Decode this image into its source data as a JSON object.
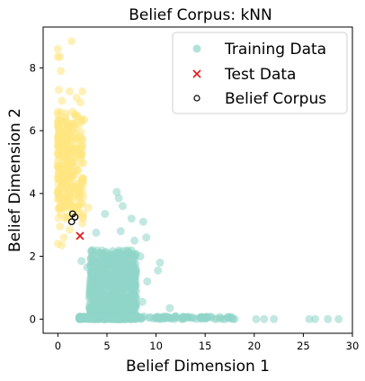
{
  "chart_data": {
    "type": "scatter",
    "title": "Belief Corpus: kNN",
    "xlabel": "Belief Dimension 1",
    "ylabel": "Belief Dimension 2",
    "xlim": [
      -1.5,
      30.0
    ],
    "ylim": [
      -0.45,
      9.3
    ],
    "xticks": [
      0,
      5,
      10,
      15,
      20,
      25,
      30
    ],
    "yticks": [
      0,
      2,
      4,
      6,
      8
    ],
    "grid": false,
    "legend_position": "top-right",
    "colors": {
      "training": "#8fd6c8",
      "test": "#e31a1c",
      "corpus": "#000000",
      "yellow": "#ffe680"
    },
    "series": [
      {
        "name": "Training Data",
        "marker": "circle",
        "clusters": [
          {
            "color": "#ffe680",
            "description": "x≈0–3, y≈2.3–9",
            "points": [
              [
                0.0,
                8.6
              ],
              [
                0.2,
                8.35
              ],
              [
                0.0,
                8.35
              ],
              [
                1.4,
                8.85
              ],
              [
                0.3,
                7.9
              ],
              [
                0.1,
                7.3
              ],
              [
                1.2,
                7.25
              ],
              [
                2.5,
                7.25
              ],
              [
                1.9,
                7.05
              ],
              [
                0.4,
                6.95
              ],
              [
                2.3,
                6.9
              ],
              [
                0.0,
                6.6
              ],
              [
                0.8,
                6.55
              ],
              [
                1.5,
                6.6
              ],
              [
                0.4,
                6.3
              ],
              [
                2.7,
                6.35
              ],
              [
                1.0,
                6.1
              ],
              [
                0.3,
                6.0
              ],
              [
                1.8,
                5.9
              ],
              [
                0.0,
                5.8
              ],
              [
                2.1,
                5.7
              ],
              [
                0.6,
                5.55
              ],
              [
                1.3,
                5.5
              ],
              [
                0.0,
                5.3
              ],
              [
                2.3,
                5.35
              ],
              [
                0.9,
                5.1
              ],
              [
                1.6,
                5.0
              ],
              [
                0.2,
                4.8
              ],
              [
                2.0,
                4.75
              ],
              [
                1.1,
                4.55
              ],
              [
                0.5,
                4.35
              ],
              [
                1.7,
                4.2
              ],
              [
                0.0,
                4.05
              ],
              [
                2.2,
                3.95
              ],
              [
                1.0,
                3.8
              ],
              [
                0.3,
                3.55
              ],
              [
                1.5,
                3.4
              ],
              [
                0.8,
                3.2
              ],
              [
                0.2,
                2.95
              ],
              [
                1.2,
                2.85
              ],
              [
                0.6,
                2.6
              ],
              [
                0.0,
                2.4
              ],
              [
                0.4,
                2.35
              ],
              [
                3.1,
                3.55
              ],
              [
                2.6,
                4.3
              ]
            ]
          },
          {
            "color": "#8fd6c8",
            "description": "x≈1–29, y≈0–4",
            "points": [
              [
                6.0,
                4.05
              ],
              [
                6.2,
                3.85
              ],
              [
                4.8,
                3.35
              ],
              [
                6.6,
                3.6
              ],
              [
                8.7,
                3.1
              ],
              [
                9.0,
                2.6
              ],
              [
                7.5,
                3.2
              ],
              [
                3.9,
                2.75
              ],
              [
                3.5,
                2.2
              ],
              [
                6.4,
                2.8
              ],
              [
                2.4,
                1.85
              ],
              [
                3.0,
                1.65
              ],
              [
                3.3,
                1.25
              ],
              [
                7.8,
                2.5
              ],
              [
                8.4,
                2.0
              ],
              [
                10.4,
                1.8
              ],
              [
                10.2,
                1.55
              ],
              [
                9.1,
                1.2
              ],
              [
                8.6,
                0.55
              ],
              [
                11.4,
                0.35
              ],
              [
                12.0,
                0.1
              ],
              [
                13.5,
                0.05
              ],
              [
                15.0,
                0.05
              ],
              [
                16.0,
                0.0
              ],
              [
                17.0,
                0.0
              ],
              [
                18.0,
                0.0
              ],
              [
                20.2,
                0.0
              ],
              [
                21.0,
                0.0
              ],
              [
                22.0,
                0.0
              ],
              [
                25.6,
                0.0
              ],
              [
                26.2,
                0.0
              ],
              [
                27.5,
                0.0
              ],
              [
                28.6,
                0.0
              ]
            ]
          }
        ]
      },
      {
        "name": "Test Data",
        "marker": "x",
        "points": [
          [
            2.25,
            2.65
          ]
        ]
      },
      {
        "name": "Belief Corpus",
        "marker": "open-circle",
        "points": [
          [
            1.5,
            3.35
          ],
          [
            1.75,
            3.25
          ],
          [
            1.4,
            3.1
          ]
        ]
      }
    ]
  }
}
